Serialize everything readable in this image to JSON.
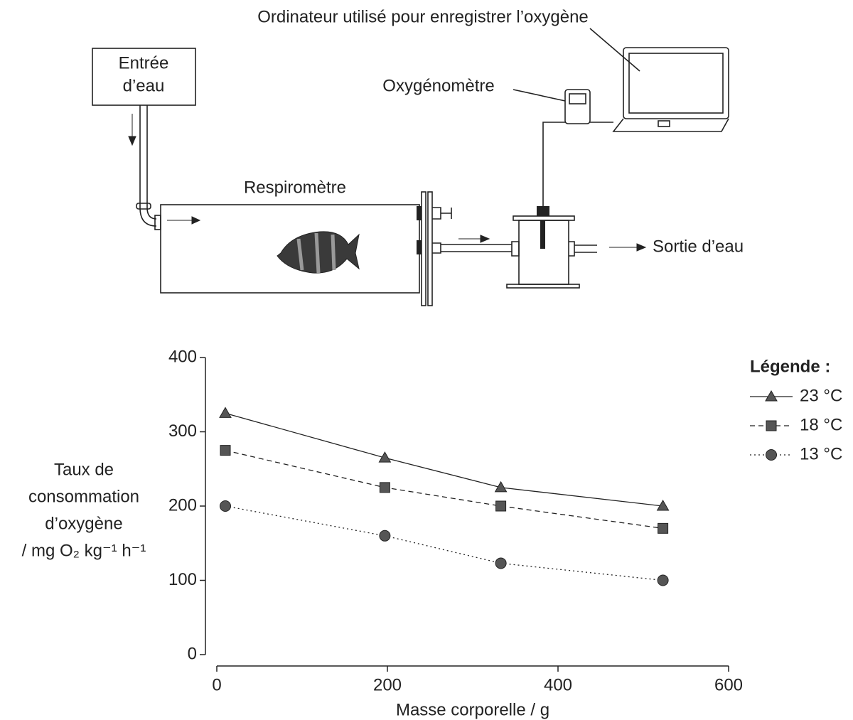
{
  "diagram": {
    "computer_label": "Ordinateur utilisé pour enregistrer l’oxygène",
    "inlet_label": [
      "Entrée",
      "d’eau"
    ],
    "meter_label": "Oxygénomètre",
    "respirometer_label": "Respiromètre",
    "outlet_label": "Sortie d’eau"
  },
  "chart_data": {
    "type": "line",
    "ylabel": [
      "Taux de",
      "consommation",
      "d’oxygène",
      "/ mg O₂ kg⁻¹ h⁻¹"
    ],
    "xlabel": "Masse corporelle / g",
    "legend_title": "Légende :",
    "legend_position": "upper right",
    "xlim": [
      0,
      600
    ],
    "xticks": [
      0,
      200,
      400,
      600
    ],
    "ylim": [
      0,
      400
    ],
    "yticks": [
      0,
      100,
      200,
      300,
      400
    ],
    "series": [
      {
        "name": "23 °C",
        "color": "#555555",
        "dash": "solid",
        "marker": "triangle",
        "x": [
          10,
          197,
          333,
          523
        ],
        "values": [
          325,
          265,
          225,
          200
        ]
      },
      {
        "name": "18 °C",
        "color": "#555555",
        "dash": "dashed",
        "marker": "square",
        "x": [
          10,
          197,
          333,
          523
        ],
        "values": [
          275,
          225,
          200,
          170
        ]
      },
      {
        "name": "13 °C",
        "color": "#555555",
        "dash": "dotted",
        "marker": "circle",
        "x": [
          10,
          197,
          333,
          523
        ],
        "values": [
          200,
          160,
          123,
          100
        ]
      }
    ]
  }
}
